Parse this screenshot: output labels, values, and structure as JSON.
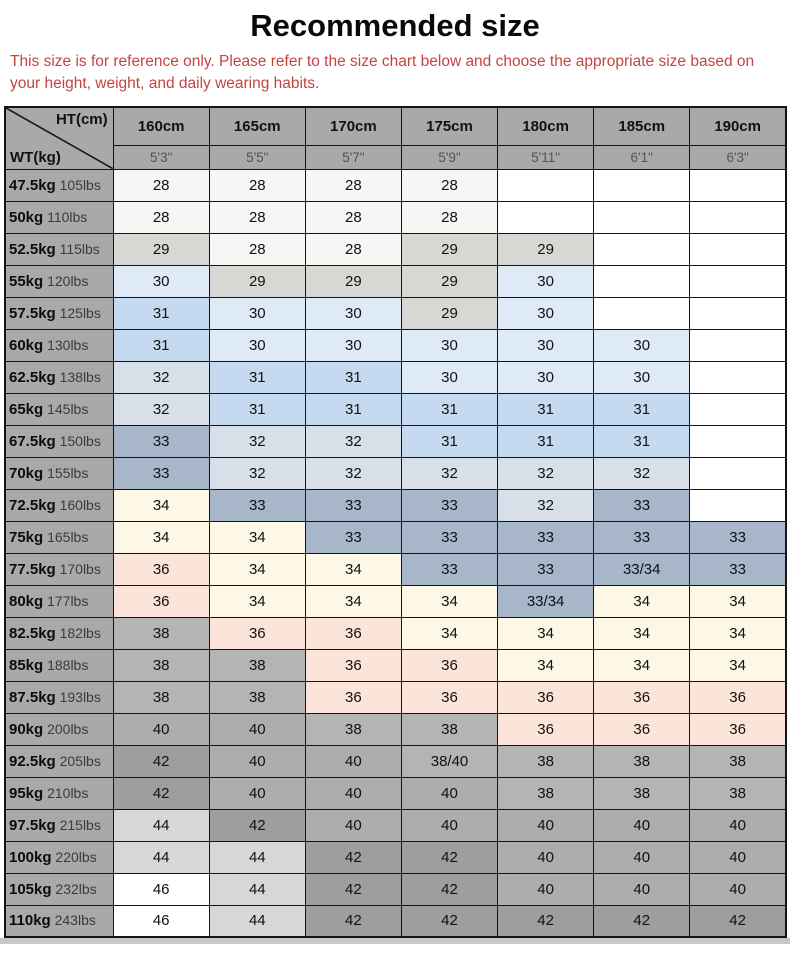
{
  "title": "Recommended size",
  "note": "This size is for reference only. Please refer to the size chart below and choose the appropriate size based on your height, weight, and daily wearing habits.",
  "table": {
    "corner": {
      "ht": "HT(cm)",
      "wt": "WT(kg)"
    },
    "columns": [
      {
        "cm": "160cm",
        "ft": "5'3\""
      },
      {
        "cm": "165cm",
        "ft": "5'5\""
      },
      {
        "cm": "170cm",
        "ft": "5'7\""
      },
      {
        "cm": "175cm",
        "ft": "5'9\""
      },
      {
        "cm": "180cm",
        "ft": "5'11\""
      },
      {
        "cm": "185cm",
        "ft": "6'1\""
      },
      {
        "cm": "190cm",
        "ft": "6'3\""
      }
    ],
    "rows": [
      {
        "kg": "47.5kg",
        "lbs": "105lbs",
        "values": [
          "28",
          "28",
          "28",
          "28",
          "",
          "",
          ""
        ]
      },
      {
        "kg": "50kg",
        "lbs": "110lbs",
        "values": [
          "28",
          "28",
          "28",
          "28",
          "",
          "",
          ""
        ]
      },
      {
        "kg": "52.5kg",
        "lbs": "115lbs",
        "values": [
          "29",
          "28",
          "28",
          "29",
          "29",
          "",
          ""
        ]
      },
      {
        "kg": "55kg",
        "lbs": "120lbs",
        "values": [
          "30",
          "29",
          "29",
          "29",
          "30",
          "",
          ""
        ]
      },
      {
        "kg": "57.5kg",
        "lbs": "125lbs",
        "values": [
          "31",
          "30",
          "30",
          "29",
          "30",
          "",
          ""
        ]
      },
      {
        "kg": "60kg",
        "lbs": "130lbs",
        "values": [
          "31",
          "30",
          "30",
          "30",
          "30",
          "30",
          ""
        ]
      },
      {
        "kg": "62.5kg",
        "lbs": "138lbs",
        "values": [
          "32",
          "31",
          "31",
          "30",
          "30",
          "30",
          ""
        ]
      },
      {
        "kg": "65kg",
        "lbs": "145lbs",
        "values": [
          "32",
          "31",
          "31",
          "31",
          "31",
          "31",
          ""
        ]
      },
      {
        "kg": "67.5kg",
        "lbs": "150lbs",
        "values": [
          "33",
          "32",
          "32",
          "31",
          "31",
          "31",
          ""
        ]
      },
      {
        "kg": "70kg",
        "lbs": "155lbs",
        "values": [
          "33",
          "32",
          "32",
          "32",
          "32",
          "32",
          ""
        ]
      },
      {
        "kg": "72.5kg",
        "lbs": "160lbs",
        "values": [
          "34",
          "33",
          "33",
          "33",
          "32",
          "33",
          ""
        ]
      },
      {
        "kg": "75kg",
        "lbs": "165lbs",
        "values": [
          "34",
          "34",
          "33",
          "33",
          "33",
          "33",
          "33"
        ]
      },
      {
        "kg": "77.5kg",
        "lbs": "170lbs",
        "values": [
          "36",
          "34",
          "34",
          "33",
          "33",
          "33/34",
          "33"
        ]
      },
      {
        "kg": "80kg",
        "lbs": "177lbs",
        "values": [
          "36",
          "34",
          "34",
          "34",
          "33/34",
          "34",
          "34"
        ]
      },
      {
        "kg": "82.5kg",
        "lbs": "182lbs",
        "values": [
          "38",
          "36",
          "36",
          "34",
          "34",
          "34",
          "34"
        ]
      },
      {
        "kg": "85kg",
        "lbs": "188lbs",
        "values": [
          "38",
          "38",
          "36",
          "36",
          "34",
          "34",
          "34"
        ]
      },
      {
        "kg": "87.5kg",
        "lbs": "193lbs",
        "values": [
          "38",
          "38",
          "36",
          "36",
          "36",
          "36",
          "36"
        ]
      },
      {
        "kg": "90kg",
        "lbs": "200lbs",
        "values": [
          "40",
          "40",
          "38",
          "38",
          "36",
          "36",
          "36"
        ]
      },
      {
        "kg": "92.5kg",
        "lbs": "205lbs",
        "values": [
          "42",
          "40",
          "40",
          "38/40",
          "38",
          "38",
          "38"
        ]
      },
      {
        "kg": "95kg",
        "lbs": "210lbs",
        "values": [
          "42",
          "40",
          "40",
          "40",
          "38",
          "38",
          "38"
        ]
      },
      {
        "kg": "97.5kg",
        "lbs": "215lbs",
        "values": [
          "44",
          "42",
          "40",
          "40",
          "40",
          "40",
          "40"
        ]
      },
      {
        "kg": "100kg",
        "lbs": "220lbs",
        "values": [
          "44",
          "44",
          "42",
          "42",
          "40",
          "40",
          "40"
        ]
      },
      {
        "kg": "105kg",
        "lbs": "232lbs",
        "values": [
          "46",
          "44",
          "42",
          "42",
          "40",
          "40",
          "40"
        ]
      },
      {
        "kg": "110kg",
        "lbs": "243lbs",
        "values": [
          "46",
          "44",
          "42",
          "42",
          "42",
          "42",
          "42"
        ]
      }
    ]
  },
  "colors": {
    "note_red": "#c4443f",
    "header_gray": "#a9a9a9",
    "cell_by_size": {
      "": "#ffffff",
      "28": "#f6f6f4",
      "29": "#d8d7d3",
      "30": "#dfeaf7",
      "31": "#c5daf1",
      "32": "#d7dfe9",
      "33": "#a8b6c9",
      "33/34": "#a8b6c9",
      "34": "#fdf8e6",
      "36": "#fbe5d8",
      "38": "#b4b4b4",
      "38/40": "#b4b4b4",
      "40": "#adadad",
      "42": "#9e9e9e",
      "44": "#d7d7d7",
      "46": "#ffffff"
    }
  }
}
